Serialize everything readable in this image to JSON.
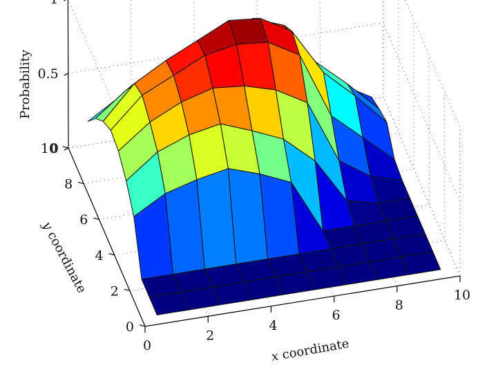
{
  "chart_data": {
    "type": "surface",
    "title": "",
    "xlabel": {
      "var": "x",
      "text": " coordinate"
    },
    "ylabel": {
      "var": "y",
      "text": " coordinate"
    },
    "zlabel": "Probability",
    "xlim": [
      0,
      10
    ],
    "ylim": [
      0,
      10
    ],
    "zlim": [
      0,
      1
    ],
    "x_ticks": [
      "0",
      "2",
      "4",
      "6",
      "8",
      "10"
    ],
    "y_ticks": [
      "0",
      "2",
      "4",
      "6",
      "8",
      "10"
    ],
    "z_ticks": [
      "0",
      "0.5",
      "1"
    ],
    "grid": true,
    "colormap": "jet",
    "x": [
      0.5,
      1.5,
      2.5,
      3.5,
      4.5,
      5.5,
      6.5,
      7.5,
      8.5,
      9.5
    ],
    "y": [
      0.5,
      1.5,
      2.5,
      3.5,
      4.5,
      5.5,
      6.5,
      7.5,
      8.5,
      9.5
    ],
    "z": [
      [
        0.0,
        0.0,
        0.0,
        0.0,
        0.0,
        0.0,
        0.0,
        0.0,
        0.0,
        0.0
      ],
      [
        0.0,
        0.0,
        0.0,
        0.0,
        0.0,
        0.0,
        0.0,
        0.0,
        0.0,
        0.0
      ],
      [
        0.0,
        0.0,
        0.0,
        0.0,
        0.0,
        0.0,
        0.0,
        0.0,
        0.0,
        0.0
      ],
      [
        0.3,
        0.42,
        0.48,
        0.52,
        0.45,
        0.36,
        0.0,
        0.0,
        0.0,
        0.0
      ],
      [
        0.42,
        0.58,
        0.66,
        0.7,
        0.62,
        0.53,
        0.35,
        0.05,
        0.0,
        0.0
      ],
      [
        0.5,
        0.66,
        0.76,
        0.82,
        0.8,
        0.74,
        0.62,
        0.2,
        0.06,
        0.0
      ],
      [
        0.52,
        0.72,
        0.82,
        0.92,
        0.96,
        0.94,
        0.82,
        0.38,
        0.2,
        0.02
      ],
      [
        0.46,
        0.68,
        0.8,
        0.9,
        1.0,
        0.98,
        0.86,
        0.55,
        0.36,
        0.15
      ],
      [
        0.36,
        0.52,
        0.6,
        0.7,
        0.82,
        0.86,
        0.78,
        0.5,
        0.32,
        0.12
      ],
      [
        0.22,
        0.35,
        0.42,
        0.48,
        0.56,
        0.62,
        0.56,
        0.36,
        0.2,
        0.08
      ]
    ]
  }
}
